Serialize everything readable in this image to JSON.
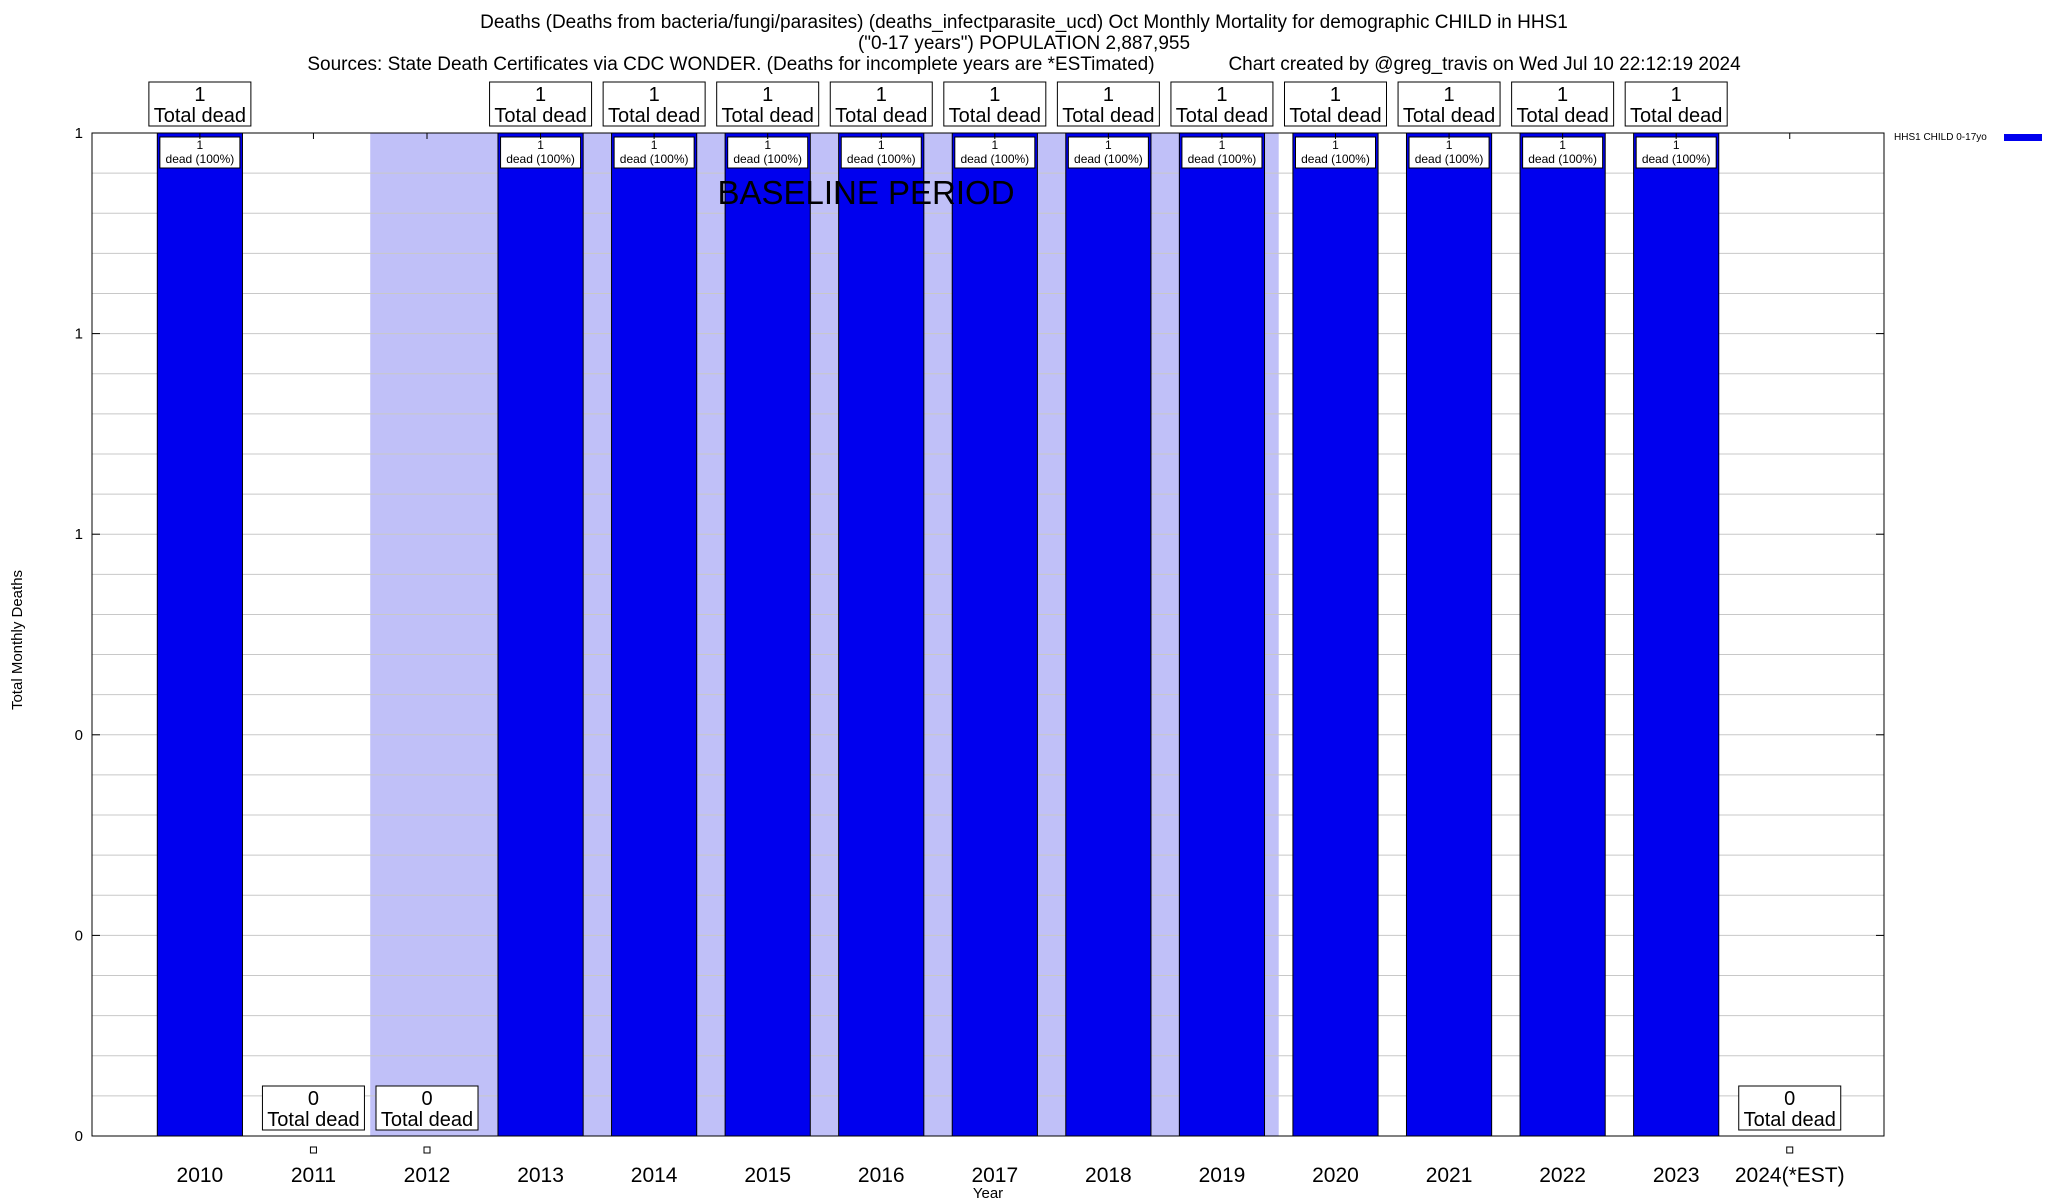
{
  "chart_data": {
    "type": "bar",
    "title": "Deaths (Deaths from bacteria/fungi/parasites) (deaths_infectparasite_ucd) Oct Monthly Mortality for demographic CHILD in HHS1",
    "subtitle": "(\"0-17 years\") POPULATION 2,887,955",
    "sources": "Sources: State Death Certificates via CDC WONDER. (Deaths for incomplete years are *ESTimated)",
    "credit": "Chart created by @greg_travis on Wed Jul 10 22:12:19 2024",
    "xlabel": "Year",
    "ylabel": "Total Monthly Deaths",
    "categories": [
      "2010",
      "2011",
      "2012",
      "2013",
      "2014",
      "2015",
      "2016",
      "2017",
      "2018",
      "2019",
      "2020",
      "2021",
      "2022",
      "2023",
      "2024(*EST)"
    ],
    "series": [
      {
        "name": "HHS1 CHILD 0-17yo",
        "color": "#0000ee",
        "values": [
          1,
          0,
          0,
          1,
          1,
          1,
          1,
          1,
          1,
          1,
          1,
          1,
          1,
          1,
          0
        ]
      }
    ],
    "ylim": [
      0,
      1
    ],
    "yticks": [
      {
        "value": 0,
        "label": "0"
      },
      {
        "value": 0.2,
        "label": "0"
      },
      {
        "value": 0.4,
        "label": "0"
      },
      {
        "value": 0.6,
        "label": "1"
      },
      {
        "value": 0.8,
        "label": "1"
      },
      {
        "value": 1.0,
        "label": "1"
      }
    ],
    "total_labels": [
      {
        "count": "1",
        "text": "Total dead"
      },
      {
        "count": "0",
        "text": "Total dead"
      },
      {
        "count": "0",
        "text": "Total dead"
      },
      {
        "count": "1",
        "text": "Total dead"
      },
      {
        "count": "1",
        "text": "Total dead"
      },
      {
        "count": "1",
        "text": "Total dead"
      },
      {
        "count": "1",
        "text": "Total dead"
      },
      {
        "count": "1",
        "text": "Total dead"
      },
      {
        "count": "1",
        "text": "Total dead"
      },
      {
        "count": "1",
        "text": "Total dead"
      },
      {
        "count": "1",
        "text": "Total dead"
      },
      {
        "count": "1",
        "text": "Total dead"
      },
      {
        "count": "1",
        "text": "Total dead"
      },
      {
        "count": "1",
        "text": "Total dead"
      },
      {
        "count": "0",
        "text": "Total dead"
      }
    ],
    "bar_labels": [
      {
        "count": "1",
        "text": "dead (100%)"
      },
      null,
      null,
      {
        "count": "1",
        "text": "dead (100%)"
      },
      {
        "count": "1",
        "text": "dead (100%)"
      },
      {
        "count": "1",
        "text": "dead (100%)"
      },
      {
        "count": "1",
        "text": "dead (100%)"
      },
      {
        "count": "1",
        "text": "dead (100%)"
      },
      {
        "count": "1",
        "text": "dead (100%)"
      },
      {
        "count": "1",
        "text": "dead (100%)"
      },
      {
        "count": "1",
        "text": "dead (100%)"
      },
      {
        "count": "1",
        "text": "dead (100%)"
      },
      {
        "count": "1",
        "text": "dead (100%)"
      },
      {
        "count": "1",
        "text": "dead (100%)"
      },
      null
    ],
    "baseline": {
      "label": "BASELINE PERIOD",
      "start": "2012",
      "end": "2019",
      "color": "#c0c0f8"
    },
    "legend": {
      "placement": "top-right",
      "label": "HHS1 CHILD 0-17yo"
    },
    "grid": true
  }
}
